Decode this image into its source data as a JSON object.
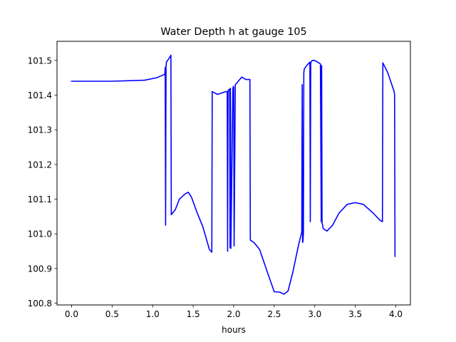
{
  "chart_data": {
    "type": "line",
    "title": "Water Depth h at gauge 105",
    "xlabel": "hours",
    "ylabel": "",
    "xlim": [
      -0.18,
      4.18
    ],
    "ylim": [
      100.795,
      101.555
    ],
    "xticks": [
      0.0,
      0.5,
      1.0,
      1.5,
      2.0,
      2.5,
      3.0,
      3.5,
      4.0
    ],
    "xtick_labels": [
      "0.0",
      "0.5",
      "1.0",
      "1.5",
      "2.0",
      "2.5",
      "3.0",
      "3.5",
      "4.0"
    ],
    "yticks": [
      100.8,
      100.9,
      101.0,
      101.1,
      101.2,
      101.3,
      101.4,
      101.5
    ],
    "ytick_labels": [
      "100.8",
      "100.9",
      "101.0",
      "101.1",
      "101.2",
      "101.3",
      "101.4",
      "101.5"
    ],
    "grid": false,
    "legend": "none",
    "series": [
      {
        "color": "#0000ff",
        "x": [
          0.0,
          0.5,
          0.9,
          1.05,
          1.1,
          1.15,
          1.155,
          1.16,
          1.165,
          1.17,
          1.2,
          1.225,
          1.23,
          1.28,
          1.33,
          1.4,
          1.44,
          1.48,
          1.55,
          1.62,
          1.7,
          1.73,
          1.735,
          1.8,
          1.9,
          1.92,
          1.925,
          1.93,
          1.935,
          1.95,
          1.955,
          1.96,
          1.965,
          1.99,
          1.995,
          2.0,
          2.005,
          2.02,
          2.1,
          2.15,
          2.2,
          2.205,
          2.25,
          2.32,
          2.4,
          2.5,
          2.57,
          2.62,
          2.67,
          2.73,
          2.8,
          2.84,
          2.845,
          2.85,
          2.855,
          2.86,
          2.865,
          2.87,
          2.9,
          2.94,
          2.945,
          2.95,
          2.955,
          2.97,
          3.0,
          3.07,
          3.08,
          3.085,
          3.09,
          3.095,
          3.1,
          3.105,
          3.15,
          3.22,
          3.3,
          3.4,
          3.5,
          3.6,
          3.72,
          3.8,
          3.835,
          3.84,
          3.9,
          3.98,
          3.985,
          3.99
        ],
        "y": [
          101.44,
          101.44,
          101.443,
          101.45,
          101.455,
          101.46,
          101.48,
          101.025,
          101.48,
          101.495,
          101.505,
          101.515,
          101.055,
          101.07,
          101.1,
          101.115,
          101.12,
          101.105,
          101.06,
          101.02,
          100.955,
          100.947,
          101.41,
          101.402,
          101.41,
          101.41,
          100.95,
          101.41,
          101.415,
          101.417,
          100.96,
          101.42,
          100.958,
          101.418,
          101.425,
          101.423,
          100.965,
          101.43,
          101.452,
          101.445,
          101.445,
          100.982,
          100.975,
          100.955,
          100.9,
          100.833,
          100.832,
          100.826,
          100.835,
          100.89,
          100.968,
          101.005,
          101.43,
          100.975,
          100.98,
          101.005,
          101.463,
          101.475,
          101.485,
          101.495,
          101.035,
          101.49,
          101.496,
          101.5,
          101.5,
          101.49,
          101.035,
          101.485,
          101.03,
          101.028,
          101.02,
          101.015,
          101.008,
          101.025,
          101.06,
          101.085,
          101.09,
          101.085,
          101.06,
          101.04,
          101.035,
          101.493,
          101.465,
          101.41,
          101.4,
          100.935
        ]
      }
    ]
  }
}
